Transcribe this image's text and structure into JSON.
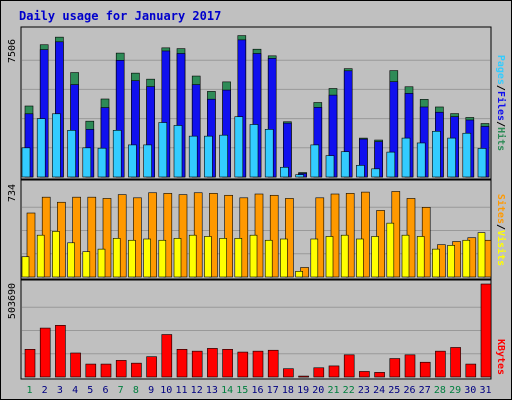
{
  "chart_data": [
    {
      "type": "bar",
      "title": "Daily usage for January 2017",
      "x": [
        "1",
        "2",
        "3",
        "4",
        "5",
        "6",
        "7",
        "8",
        "9",
        "10",
        "11",
        "12",
        "13",
        "14",
        "15",
        "16",
        "17",
        "18",
        "19",
        "20",
        "21",
        "22",
        "23",
        "24",
        "25",
        "26",
        "27",
        "28",
        "29",
        "30",
        "31"
      ],
      "weekend_days": [
        "1",
        "7",
        "8",
        "14",
        "15",
        "21",
        "22",
        "28",
        "29"
      ],
      "ylabel_max": "7506",
      "ylim": [
        0,
        7506
      ],
      "series": [
        {
          "name": "Hits",
          "color": "#2e8b57",
          "values": [
            3650,
            6800,
            7190,
            5370,
            2870,
            4010,
            6370,
            5340,
            5030,
            6640,
            6600,
            5190,
            4400,
            4890,
            7270,
            6570,
            6230,
            2840,
            230,
            3830,
            4550,
            5570,
            2000,
            1900,
            5470,
            4640,
            3990,
            3600,
            3260,
            3060,
            2750
          ]
        },
        {
          "name": "Files",
          "color": "#1010ee",
          "values": [
            3250,
            6550,
            6950,
            4750,
            2450,
            3570,
            6000,
            4950,
            4650,
            6480,
            6350,
            4750,
            4000,
            4470,
            7050,
            6350,
            6100,
            2770,
            180,
            3580,
            4210,
            5460,
            1950,
            1820,
            4900,
            4300,
            3600,
            3330,
            3100,
            2930,
            2600
          ]
        },
        {
          "name": "Pages",
          "color": "#33ccff",
          "values": [
            1500,
            3000,
            3250,
            2400,
            1500,
            1480,
            2400,
            1650,
            1650,
            2800,
            2650,
            2100,
            2100,
            2150,
            3100,
            2700,
            2450,
            500,
            120,
            1650,
            1100,
            1300,
            600,
            420,
            1280,
            2000,
            1750,
            2350,
            2000,
            2250,
            1470
          ]
        }
      ]
    },
    {
      "type": "bar",
      "x": [
        "1",
        "2",
        "3",
        "4",
        "5",
        "6",
        "7",
        "8",
        "9",
        "10",
        "11",
        "12",
        "13",
        "14",
        "15",
        "16",
        "17",
        "18",
        "19",
        "20",
        "21",
        "22",
        "23",
        "24",
        "25",
        "26",
        "27",
        "28",
        "29",
        "30",
        "31"
      ],
      "ylabel_max": "734",
      "ylim": [
        0,
        734
      ],
      "series": [
        {
          "name": "Visits",
          "color": "#ffff00",
          "values": [
            160,
            330,
            360,
            270,
            200,
            220,
            305,
            290,
            300,
            290,
            305,
            330,
            320,
            305,
            305,
            330,
            290,
            300,
            45,
            300,
            320,
            330,
            300,
            320,
            425,
            330,
            320,
            220,
            250,
            290,
            350
          ]
        },
        {
          "name": "Sites",
          "color": "#ff9900",
          "values": [
            505,
            630,
            590,
            630,
            630,
            620,
            650,
            625,
            665,
            660,
            650,
            665,
            660,
            645,
            625,
            655,
            645,
            620,
            75,
            625,
            655,
            660,
            670,
            525,
            675,
            620,
            550,
            255,
            280,
            310,
            290
          ]
        }
      ]
    },
    {
      "type": "bar",
      "x": [
        "1",
        "2",
        "3",
        "4",
        "5",
        "6",
        "7",
        "8",
        "9",
        "10",
        "11",
        "12",
        "13",
        "14",
        "15",
        "16",
        "17",
        "18",
        "19",
        "20",
        "21",
        "22",
        "23",
        "24",
        "25",
        "26",
        "27",
        "28",
        "29",
        "30",
        "31"
      ],
      "ylabel_max": "503690",
      "ylim": [
        0,
        503690
      ],
      "series": [
        {
          "name": "KBytes",
          "color": "#ff0000",
          "values": [
            150000,
            265000,
            280000,
            130000,
            70000,
            70000,
            90000,
            75000,
            110000,
            230000,
            150000,
            140000,
            155000,
            150000,
            135000,
            140000,
            145000,
            45000,
            5000,
            50000,
            60000,
            120000,
            30000,
            25000,
            100000,
            120000,
            80000,
            140000,
            160000,
            70000,
            503690
          ]
        }
      ]
    }
  ],
  "legend": {
    "panel1": [
      {
        "label": "Pages",
        "color": "#33ccff"
      },
      {
        "sep": "/",
        "color": "#000000"
      },
      {
        "label": "Files",
        "color": "#1010ee"
      },
      {
        "sep": "/",
        "color": "#000000"
      },
      {
        "label": "Hits",
        "color": "#2e8b57"
      }
    ],
    "panel2": [
      {
        "label": "Sites",
        "color": "#ff9900"
      },
      {
        "sep": "/",
        "color": "#000000"
      },
      {
        "label": "Visits",
        "color": "#ffff00"
      }
    ],
    "panel3": [
      {
        "label": "KBytes",
        "color": "#ff0000"
      }
    ]
  },
  "colors": {
    "title": "#0000cc",
    "weekday_label": "#000080",
    "weekend_label": "#007f3f",
    "panel_bg": "#c0c0c0",
    "grid": "#999999"
  }
}
